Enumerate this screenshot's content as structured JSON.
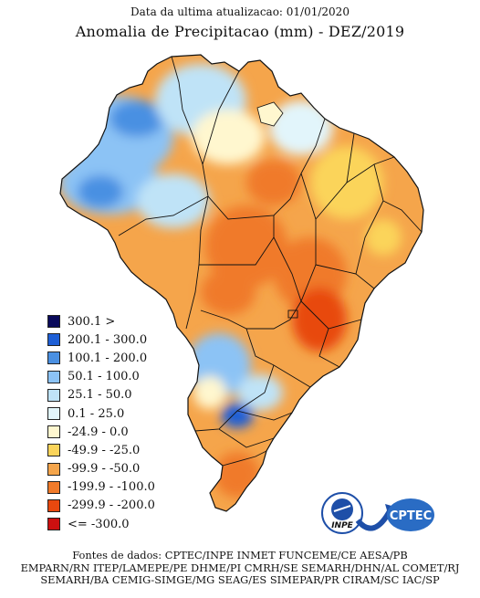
{
  "header": {
    "update_text": "Data da ultima atualizacao: 01/01/2020",
    "title": "Anomalia de Precipitacao (mm) - DEZ/2019"
  },
  "legend": [
    {
      "label": "300.1 >",
      "color": "#0a0a5a"
    },
    {
      "label": "200.1 - 300.0",
      "color": "#1e5fd6"
    },
    {
      "label": "100.1 - 200.0",
      "color": "#4a90e2"
    },
    {
      "label": "50.1 - 100.0",
      "color": "#8cc3f5"
    },
    {
      "label": "25.1 - 50.0",
      "color": "#bfe3f7"
    },
    {
      "label": "0.1 - 25.0",
      "color": "#e2f5fb"
    },
    {
      "label": "-24.9 - 0.0",
      "color": "#fff7cf"
    },
    {
      "label": "-49.9 - -25.0",
      "color": "#fbd45a"
    },
    {
      "label": "-99.9 - -50.0",
      "color": "#f5a54b"
    },
    {
      "label": "-199.9 - -100.0",
      "color": "#f07a2a"
    },
    {
      "label": "-299.9 - -200.0",
      "color": "#e8480f"
    },
    {
      "label": "<= -300.0",
      "color": "#cc1010"
    }
  ],
  "sources": {
    "line1": "Fontes de dados: CPTEC/INPE INMET FUNCEME/CE AESA/PB",
    "line2": "EMPARN/RN ITEP/LAMEPE/PE DHME/PI CMRH/SE SEMARH/DHN/AL COMET/RJ",
    "line3": "SEMARH/BA CEMIG-SIMGE/MG SEAG/ES SIMEPAR/PR CIRAM/SC IAC/SP"
  },
  "logos": {
    "inpe": "INPE",
    "cptec": "CPTEC"
  }
}
